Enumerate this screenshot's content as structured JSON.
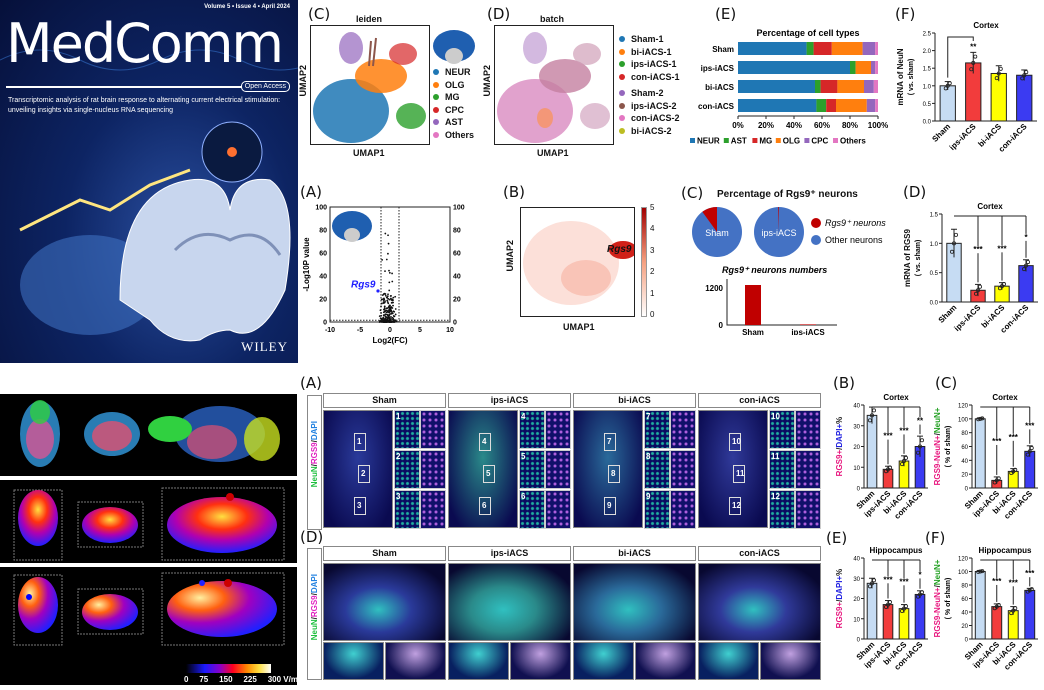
{
  "cover": {
    "issue": "Volume 5 • Issue 4 • April 2024",
    "journal": "MedComm",
    "open_access": "Open Access",
    "subtitle": "Transcriptomic analysis of rat brain response to alternating current electrical stimulation: unveiling insights via single-nucleus RNA sequencing",
    "publisher": "WILEY"
  },
  "simulation": {
    "colorbar_ticks": [
      "0",
      "75",
      "150",
      "225",
      "300 V/m"
    ]
  },
  "umap_leiden": {
    "label": "(C)",
    "title": "leiden",
    "xlabel": "UMAP1",
    "ylabel": "UMAP2",
    "legend": [
      {
        "name": "NEUR",
        "color": "#1f77b4"
      },
      {
        "name": "OLG",
        "color": "#ff7f0e"
      },
      {
        "name": "MG",
        "color": "#2ca02c"
      },
      {
        "name": "CPC",
        "color": "#d62728"
      },
      {
        "name": "AST",
        "color": "#9467bd"
      },
      {
        "name": "Others",
        "color": "#e377c2"
      }
    ]
  },
  "umap_batch": {
    "label": "(D)",
    "title": "batch",
    "xlabel": "UMAP1",
    "ylabel": "UMAP2",
    "legend": [
      {
        "name": "Sham-1",
        "color": "#1f77b4"
      },
      {
        "name": "bi-iACS-1",
        "color": "#ff7f0e"
      },
      {
        "name": "ips-iACS-1",
        "color": "#2ca02c"
      },
      {
        "name": "con-iACS-1",
        "color": "#d62728"
      },
      {
        "name": "Sham-2",
        "color": "#9467bd"
      },
      {
        "name": "ips-iACS-2",
        "color": "#8c564b"
      },
      {
        "name": "con-iACS-2",
        "color": "#e377c2"
      },
      {
        "name": "bi-iACS-2",
        "color": "#bcbd22"
      }
    ]
  },
  "volcano": {
    "label": "(A)",
    "xlabel": "Log2(FC)",
    "ylabel": "-Log10P value",
    "highlight": "Rgs9",
    "xticks": [
      "-10",
      "-5",
      "0",
      "5",
      "10"
    ],
    "yticks": [
      "0",
      "20",
      "40",
      "60",
      "80",
      "100"
    ]
  },
  "umap_rgs9": {
    "label": "(B)",
    "xlabel": "UMAP1",
    "ylabel": "UMAP2",
    "gene": "Rgs9",
    "scale_ticks": [
      "0",
      "1",
      "2",
      "3",
      "4",
      "5"
    ]
  },
  "pies": {
    "label": "(C)",
    "title": "Percentage of Rgs9⁺ neurons",
    "groups": [
      {
        "name": "Sham",
        "rgs9_pct": 10
      },
      {
        "name": "ips-iACS",
        "rgs9_pct": 0.5
      }
    ],
    "legend": [
      {
        "name": "Rgs9⁺ neurons",
        "color": "#c00000"
      },
      {
        "name": "Other neurons",
        "color": "#4472c4"
      }
    ],
    "counts_title": "Rgs9⁺ neurons numbers",
    "counts": [
      {
        "name": "Sham",
        "value": 1300
      },
      {
        "name": "ips-iACS",
        "value": 20
      }
    ],
    "count_ticks": [
      "0",
      "1200"
    ]
  },
  "bottom_A": {
    "label": "(A)",
    "stain": [
      "NeuN",
      "/",
      "RGS9",
      "/",
      "DAPI"
    ],
    "groups": [
      "Sham",
      "ips-iACS",
      "bi-iACS",
      "con-iACS"
    ],
    "rois": [
      [
        "1",
        "2",
        "3"
      ],
      [
        "4",
        "5",
        "6"
      ],
      [
        "7",
        "8",
        "9"
      ],
      [
        "10",
        "11",
        "12"
      ]
    ]
  },
  "bottom_D": {
    "label": "(D)",
    "stain": [
      "NeuN",
      "/",
      "RGS9",
      "/",
      "DAPI"
    ],
    "groups": [
      "Sham",
      "ips-iACS",
      "bi-iACS",
      "con-iACS"
    ]
  },
  "chart_data": [
    {
      "id": "E_top",
      "label": "(E)",
      "type": "bar",
      "orientation": "horizontal-stacked",
      "title": "Percentage of cell types",
      "categories": [
        "Sham",
        "ips-iACS",
        "bi-iACS",
        "con-iACS"
      ],
      "series": [
        {
          "name": "NEUR",
          "color": "#1f77b4",
          "values": [
            49,
            80,
            55,
            56
          ]
        },
        {
          "name": "AST",
          "color": "#2ca02c",
          "values": [
            5,
            4,
            4,
            7
          ]
        },
        {
          "name": "MG",
          "color": "#d62728",
          "values": [
            13,
            0,
            12,
            7
          ]
        },
        {
          "name": "OLG",
          "color": "#ff7f0e",
          "values": [
            22,
            11,
            19,
            22
          ]
        },
        {
          "name": "CPC",
          "color": "#9467bd",
          "values": [
            9,
            3,
            7,
            6
          ]
        },
        {
          "name": "Others",
          "color": "#e377c2",
          "values": [
            2,
            2,
            3,
            2
          ]
        }
      ],
      "xticks": [
        "0%",
        "20%",
        "40%",
        "60%",
        "80%",
        "100%"
      ],
      "xlim": [
        0,
        100
      ]
    },
    {
      "id": "F_top",
      "label": "(F)",
      "type": "bar",
      "title": "Cortex",
      "categories": [
        "Sham",
        "ips-iACS",
        "bi-iACS",
        "con-iACS"
      ],
      "values": [
        1.0,
        1.65,
        1.35,
        1.3
      ],
      "errors": [
        0.12,
        0.3,
        0.22,
        0.15
      ],
      "ylabel": [
        {
          "text": "mRNA of NeuN",
          "color": "#111"
        }
      ],
      "ylabel2": "( vs. sham)",
      "ylim": [
        0,
        2.5
      ],
      "yticks": [
        "0.0",
        "0.5",
        "1.0",
        "1.5",
        "2.0",
        "2.5"
      ],
      "significance": [
        "",
        "**",
        "",
        ""
      ],
      "bracket": "sham-ips",
      "colors": [
        "#c6dcf3",
        "#f23c3c",
        "#ffff00",
        "#3b3bf2"
      ]
    },
    {
      "id": "D_mid",
      "label": "(D)",
      "type": "bar",
      "title": "Cortex",
      "categories": [
        "Sham",
        "ips-iACS",
        "bi-iACS",
        "con-iACS"
      ],
      "values": [
        1.0,
        0.2,
        0.27,
        0.62
      ],
      "errors": [
        0.24,
        0.1,
        0.06,
        0.1
      ],
      "ylabel": [
        {
          "text": "mRNA of RGS9",
          "color": "#111"
        }
      ],
      "ylabel2": "( vs. sham)",
      "ylim": [
        0,
        1.5
      ],
      "yticks": [
        "0.0",
        "0.5",
        "1.0",
        "1.5"
      ],
      "significance": [
        "",
        "***",
        "***",
        "*"
      ],
      "bracket": "all",
      "colors": [
        "#c6dcf3",
        "#f23c3c",
        "#ffff00",
        "#3b3bf2"
      ]
    },
    {
      "id": "B_bot",
      "label": "(B)",
      "type": "bar",
      "title": "Cortex",
      "categories": [
        "Sham",
        "ips-iACS",
        "bi-iACS",
        "con-iACS"
      ],
      "values": [
        35,
        9,
        13,
        20
      ],
      "errors": [
        4,
        1.5,
        2.5,
        5
      ],
      "ylabel": [
        {
          "text": "RGS9+",
          "color": "#e8177f"
        },
        {
          "text": "/",
          "color": "#111"
        },
        {
          "text": "DAPI+",
          "color": "#2020e0"
        },
        {
          "text": "%",
          "color": "#111"
        }
      ],
      "ylim": [
        0,
        40
      ],
      "yticks": [
        "0",
        "10",
        "20",
        "30",
        "40"
      ],
      "significance": [
        "",
        "***",
        "***",
        "**"
      ],
      "bracket": "all",
      "colors": [
        "#c6dcf3",
        "#f23c3c",
        "#ffff00",
        "#3b3bf2"
      ]
    },
    {
      "id": "C_bot",
      "label": "(C)",
      "type": "bar",
      "title": "Cortex",
      "categories": [
        "Sham",
        "ips-iACS",
        "bi-iACS",
        "con-iACS"
      ],
      "values": [
        100,
        11,
        24,
        53
      ],
      "errors": [
        1,
        5,
        4,
        8
      ],
      "ylabel": [
        {
          "text": "RGS9-NeuN+",
          "color": "#e8177f"
        },
        {
          "text": "/",
          "color": "#111"
        },
        {
          "text": "NeuN+",
          "color": "#22a022"
        }
      ],
      "ylabel2": "( % of sham)",
      "ylim": [
        0,
        120
      ],
      "yticks": [
        "0",
        "20",
        "40",
        "60",
        "80",
        "100",
        "120"
      ],
      "significance": [
        "",
        "***",
        "***",
        "***"
      ],
      "bracket": "all",
      "colors": [
        "#c6dcf3",
        "#f23c3c",
        "#ffff00",
        "#3b3bf2"
      ]
    },
    {
      "id": "E_bot",
      "label": "(E)",
      "type": "bar",
      "title": "Hippocampus",
      "categories": [
        "Sham",
        "ips-iACS",
        "bi-iACS",
        "con-iACS"
      ],
      "values": [
        27.5,
        17,
        15,
        22
      ],
      "errors": [
        2.5,
        2,
        2,
        1.8
      ],
      "ylabel": [
        {
          "text": "RGS9+",
          "color": "#e8177f"
        },
        {
          "text": "/",
          "color": "#111"
        },
        {
          "text": "DAPI+",
          "color": "#2020e0"
        },
        {
          "text": "%",
          "color": "#111"
        }
      ],
      "ylim": [
        0,
        40
      ],
      "yticks": [
        "0",
        "10",
        "20",
        "30",
        "40"
      ],
      "significance": [
        "",
        "***",
        "***",
        "*"
      ],
      "bracket": "all",
      "colors": [
        "#c6dcf3",
        "#f23c3c",
        "#ffff00",
        "#3b3bf2"
      ]
    },
    {
      "id": "F_bot",
      "label": "(F)",
      "type": "bar",
      "title": "Hippocampus",
      "categories": [
        "Sham",
        "ips-iACS",
        "bi-iACS",
        "con-iACS"
      ],
      "values": [
        100,
        48,
        42,
        72
      ],
      "errors": [
        1,
        4,
        6,
        3
      ],
      "ylabel": [
        {
          "text": "RGS9-NeuN+",
          "color": "#e8177f"
        },
        {
          "text": "/",
          "color": "#111"
        },
        {
          "text": "NeuN+",
          "color": "#22a022"
        }
      ],
      "ylabel2": "( % of sham)",
      "ylim": [
        0,
        120
      ],
      "yticks": [
        "0",
        "20",
        "40",
        "60",
        "80",
        "100",
        "120"
      ],
      "significance": [
        "",
        "***",
        "***",
        "***"
      ],
      "bracket": "all",
      "colors": [
        "#c6dcf3",
        "#f23c3c",
        "#ffff00",
        "#3b3bf2"
      ]
    }
  ]
}
